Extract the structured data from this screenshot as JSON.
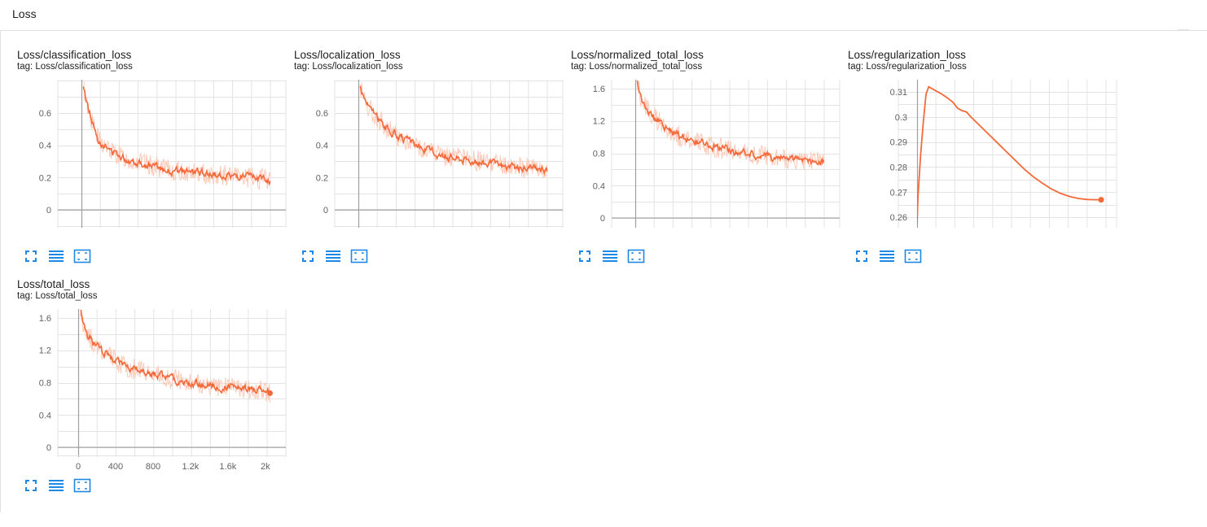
{
  "section": {
    "title": "Loss"
  },
  "colors": {
    "line": "#f4693a",
    "line_raw": "#fbcab8",
    "icon": "#1e88e5",
    "grid": "#e3e3e3",
    "axis": "#9e9e9e"
  },
  "icons": {
    "fullscreen": "fullscreen-icon",
    "log_scale": "lines-icon",
    "fit_domain": "fit-domain-icon"
  },
  "cards": [
    {
      "title": "Loss/classification_loss",
      "tag": "tag: Loss/classification_loss"
    },
    {
      "title": "Loss/localization_loss",
      "tag": "tag: Loss/localization_loss"
    },
    {
      "title": "Loss/normalized_total_loss",
      "tag": "tag: Loss/normalized_total_loss"
    },
    {
      "title": "Loss/regularization_loss",
      "tag": "tag: Loss/regularization_loss"
    },
    {
      "title": "Loss/total_loss",
      "tag": "tag: Loss/total_loss"
    }
  ],
  "chart_data": [
    {
      "type": "line",
      "title": "Loss/classification_loss",
      "xlim": [
        0,
        2150
      ],
      "ylim": [
        -0.1,
        0.8
      ],
      "yticks": [
        0,
        0.2,
        0.4,
        0.6
      ],
      "ytick_labels": [
        "0",
        "0.2",
        "0.4",
        "0.6"
      ],
      "xtick_labels": [],
      "series": [
        {
          "x": [
            20,
            60,
            100,
            140,
            180,
            240,
            300,
            400,
            500,
            600,
            700,
            800,
            900,
            1000,
            1200,
            1400,
            1600,
            1800,
            2000,
            2050
          ],
          "y": [
            0.76,
            0.66,
            0.58,
            0.5,
            0.44,
            0.4,
            0.37,
            0.34,
            0.31,
            0.3,
            0.28,
            0.27,
            0.25,
            0.24,
            0.23,
            0.22,
            0.21,
            0.2,
            0.19,
            0.18
          ]
        }
      ]
    },
    {
      "type": "line",
      "title": "Loss/localization_loss",
      "xlim": [
        0,
        2150
      ],
      "ylim": [
        -0.1,
        0.8
      ],
      "yticks": [
        0,
        0.2,
        0.4,
        0.6
      ],
      "ytick_labels": [
        "0",
        "0.2",
        "0.4",
        "0.6"
      ],
      "xtick_labels": [],
      "series": [
        {
          "x": [
            20,
            60,
            100,
            160,
            240,
            320,
            400,
            500,
            600,
            700,
            800,
            900,
            1000,
            1200,
            1400,
            1600,
            1800,
            2000,
            2050
          ],
          "y": [
            0.76,
            0.7,
            0.65,
            0.6,
            0.55,
            0.5,
            0.47,
            0.43,
            0.41,
            0.38,
            0.36,
            0.34,
            0.33,
            0.31,
            0.29,
            0.27,
            0.26,
            0.25,
            0.24
          ]
        }
      ]
    },
    {
      "type": "line",
      "title": "Loss/normalized_total_loss",
      "xlim": [
        0,
        2150
      ],
      "ylim": [
        -0.1,
        1.7
      ],
      "yticks": [
        0,
        0.4,
        0.8,
        1.2,
        1.6
      ],
      "ytick_labels": [
        "0",
        "0.4",
        "0.8",
        "1.2",
        "1.6"
      ],
      "xtick_labels": [],
      "series": [
        {
          "x": [
            20,
            60,
            100,
            160,
            240,
            320,
            400,
            500,
            600,
            700,
            800,
            900,
            1000,
            1200,
            1400,
            1600,
            1800,
            2000,
            2050
          ],
          "y": [
            1.7,
            1.5,
            1.4,
            1.3,
            1.2,
            1.14,
            1.07,
            1.0,
            0.97,
            0.93,
            0.9,
            0.87,
            0.84,
            0.8,
            0.77,
            0.74,
            0.72,
            0.7,
            0.69
          ]
        }
      ]
    },
    {
      "type": "line",
      "title": "Loss/regularization_loss",
      "xlim": [
        0,
        2150
      ],
      "ylim": [
        0.2565,
        0.3145
      ],
      "yticks": [
        0.26,
        0.27,
        0.28,
        0.29,
        0.3,
        0.31
      ],
      "ytick_labels": [
        "0.26",
        "0.27",
        "0.28",
        "0.29",
        "0.3",
        "0.31"
      ],
      "xtick_labels": [],
      "series": [
        {
          "x": [
            0,
            10,
            40,
            70,
            100,
            130,
            170,
            220,
            280,
            340,
            400,
            450,
            500,
            550,
            600,
            700,
            800,
            900,
            1000,
            1100,
            1200,
            1300,
            1400,
            1500,
            1600,
            1700,
            1800,
            1900,
            2000,
            2050
          ],
          "y": [
            0.2575,
            0.268,
            0.285,
            0.298,
            0.309,
            0.312,
            0.3112,
            0.3102,
            0.309,
            0.3075,
            0.3058,
            0.3035,
            0.3025,
            0.302,
            0.3,
            0.2965,
            0.293,
            0.2895,
            0.286,
            0.2825,
            0.279,
            0.276,
            0.2735,
            0.2712,
            0.2695,
            0.2683,
            0.2675,
            0.2671,
            0.267,
            0.267
          ]
        }
      ]
    },
    {
      "type": "line",
      "title": "Loss/total_loss",
      "xlim": [
        -200,
        2150
      ],
      "ylim": [
        -0.1,
        1.7
      ],
      "yticks": [
        0,
        0.4,
        0.8,
        1.2,
        1.6
      ],
      "ytick_labels": [
        "0",
        "0.4",
        "0.8",
        "1.2",
        "1.6"
      ],
      "xticks": [
        0,
        400,
        800,
        1200,
        1600,
        2000
      ],
      "xtick_labels": [
        "0",
        "400",
        "800",
        "1.2k",
        "1.6k",
        "2k"
      ],
      "series": [
        {
          "x": [
            20,
            60,
            100,
            160,
            240,
            320,
            400,
            500,
            600,
            700,
            800,
            900,
            1000,
            1200,
            1400,
            1600,
            1800,
            2000,
            2050
          ],
          "y": [
            1.7,
            1.5,
            1.4,
            1.3,
            1.2,
            1.14,
            1.07,
            1.0,
            0.97,
            0.93,
            0.9,
            0.87,
            0.84,
            0.8,
            0.77,
            0.74,
            0.72,
            0.7,
            0.67
          ]
        }
      ]
    }
  ]
}
